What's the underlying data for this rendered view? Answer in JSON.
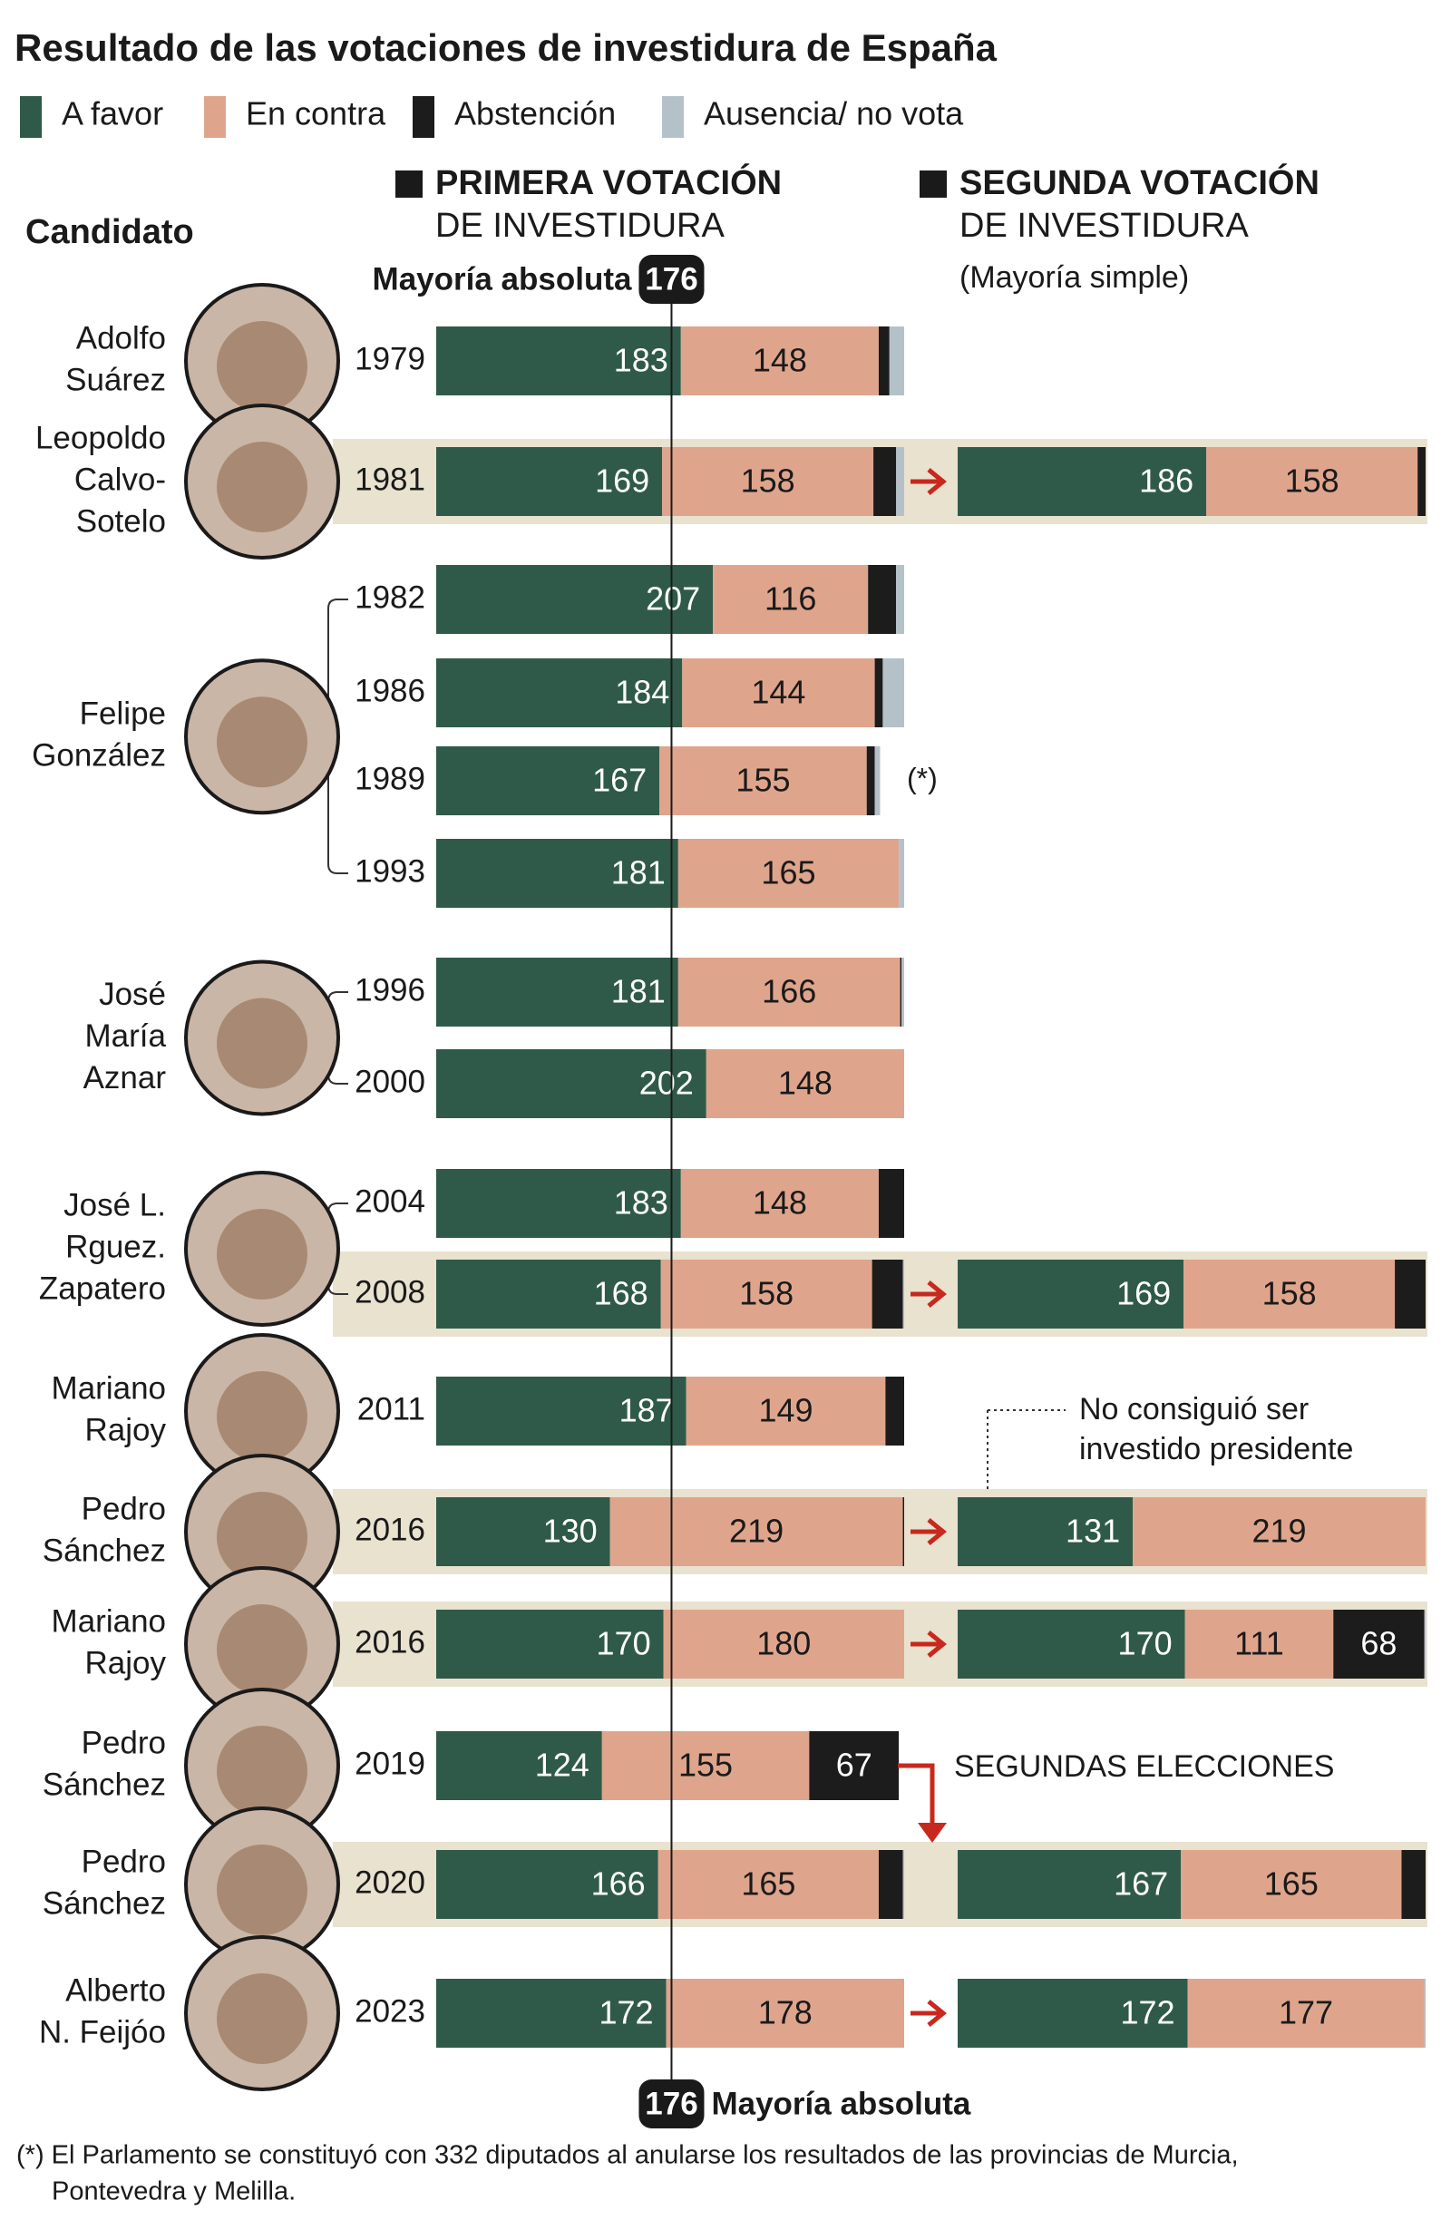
{
  "chart_data": {
    "type": "stacked_bar",
    "title": "Resultado de las votaciones de investidura de España",
    "candidate_header": "Candidato",
    "panels": [
      {
        "title": "PRIMERA VOTACIÓN",
        "subtitle": "DE INVESTIDURA"
      },
      {
        "title": "SEGUNDA VOTACIÓN",
        "subtitle": "DE INVESTIDURA",
        "note": "(Mayoría simple)"
      }
    ],
    "majority": {
      "label": "Mayoría absoluta",
      "value": 176
    },
    "xlim": [
      0,
      350
    ],
    "categories": [
      "1979",
      "1981",
      "1982",
      "1986",
      "1989",
      "1993",
      "1996",
      "2000",
      "2004",
      "2008",
      "2011",
      "2016",
      "2016",
      "2019",
      "2020",
      "2023"
    ],
    "candidates": [
      {
        "lines": [
          "Adolfo",
          "Suárez"
        ]
      },
      {
        "lines": [
          "Leopoldo",
          "Calvo-",
          "Sotelo"
        ]
      },
      {
        "lines": [
          "Felipe",
          "González"
        ]
      },
      {
        "lines": [
          "José",
          "María",
          "Aznar"
        ]
      },
      {
        "lines": [
          "José L.",
          "Rguez.",
          "Zapatero"
        ]
      },
      {
        "lines": [
          "Mariano",
          "Rajoy"
        ]
      },
      {
        "lines": [
          "Pedro",
          "Sánchez"
        ]
      },
      {
        "lines": [
          "Mariano",
          "Rajoy"
        ]
      },
      {
        "lines": [
          "Pedro",
          "Sánchez"
        ]
      },
      {
        "lines": [
          "Pedro",
          "Sánchez"
        ]
      },
      {
        "lines": [
          "Alberto",
          "N. Feijóo"
        ]
      }
    ],
    "series": [
      {
        "name": "A favor",
        "color": "#2f5a4a",
        "values": [
          183,
          169,
          207,
          184,
          167,
          181,
          181,
          202,
          183,
          168,
          187,
          130,
          170,
          124,
          166,
          172
        ],
        "second_values": [
          null,
          186,
          null,
          null,
          null,
          null,
          null,
          null,
          null,
          169,
          null,
          131,
          170,
          null,
          167,
          172
        ]
      },
      {
        "name": "En contra",
        "color": "#dfa58c",
        "values": [
          148,
          158,
          116,
          144,
          155,
          165,
          166,
          148,
          148,
          158,
          149,
          219,
          180,
          155,
          165,
          178
        ],
        "second_values": [
          null,
          158,
          null,
          null,
          null,
          null,
          null,
          null,
          null,
          158,
          null,
          219,
          111,
          null,
          165,
          177
        ]
      },
      {
        "name": "Abstención",
        "color": "#1c1c1c",
        "values": [
          8,
          17,
          21,
          6,
          6,
          0,
          1,
          0,
          19,
          23,
          14,
          1,
          0,
          67,
          18,
          0
        ],
        "second_values": [
          null,
          6,
          null,
          null,
          null,
          null,
          null,
          null,
          null,
          23,
          null,
          0,
          68,
          null,
          18,
          0
        ]
      },
      {
        "name": "Ausencia/ no vota",
        "color": "#b5c1c9",
        "values": [
          11,
          6,
          6,
          16,
          4,
          4,
          2,
          0,
          0,
          1,
          0,
          0,
          0,
          0,
          1,
          0
        ],
        "second_values": [
          null,
          0,
          null,
          null,
          null,
          null,
          null,
          null,
          null,
          0,
          null,
          0,
          1,
          null,
          0,
          1
        ]
      }
    ],
    "annotations": {
      "asterisk": "(*)",
      "failed": [
        "No consiguió ser",
        "investido presidente"
      ],
      "reelection": "SEGUNDAS ELECCIONES"
    },
    "footnote": [
      "(*) El Parlamento se constituyó con 332 diputados al anularse los resultados de las provincias de Murcia,",
      "Pontevedra y Melilla."
    ]
  }
}
